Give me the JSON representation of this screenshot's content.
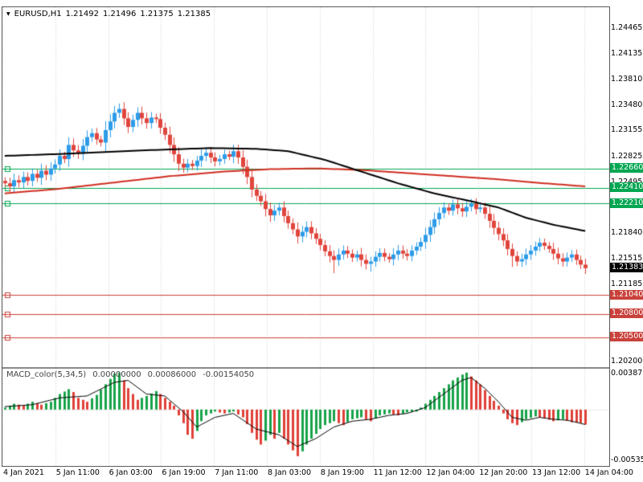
{
  "header": {
    "symbol": "EURUSD,H1",
    "open": "1.21492",
    "high": "1.21496",
    "low": "1.21375",
    "close": "1.21385"
  },
  "macd_header": {
    "label": "MACD_color(5,34,5)",
    "values": [
      "0.00000000",
      "0.00086000",
      "-0.00154050"
    ]
  },
  "price_axis": {
    "ticks": [
      {
        "v": 1.24465,
        "t": "1.24465"
      },
      {
        "v": 1.24135,
        "t": "1.24135"
      },
      {
        "v": 1.2381,
        "t": "1.23810"
      },
      {
        "v": 1.2348,
        "t": "1.23480"
      },
      {
        "v": 1.23155,
        "t": "1.23155"
      },
      {
        "v": 1.22825,
        "t": "1.22825"
      },
      {
        "v": 1.22495,
        "t": "1.22495"
      },
      {
        "v": 1.2184,
        "t": "1.21840"
      },
      {
        "v": 1.21515,
        "t": "1.21515"
      },
      {
        "v": 1.21185,
        "t": "1.21185"
      },
      {
        "v": 1.202,
        "t": "1.20200"
      }
    ],
    "green_levels": [
      {
        "v": 1.2266,
        "t": "1.22660"
      },
      {
        "v": 1.2241,
        "t": "1.22410"
      },
      {
        "v": 1.2221,
        "t": "1.22210"
      }
    ],
    "red_levels": [
      {
        "v": 1.2104,
        "t": "1.21040"
      },
      {
        "v": 1.208,
        "t": "1.20800"
      },
      {
        "v": 1.205,
        "t": "1.20500"
      }
    ],
    "current": {
      "v": 1.21383,
      "t": "1.21383"
    }
  },
  "macd_axis": {
    "top": {
      "v": 0.0038777,
      "t": "0.0038777"
    },
    "bottom": {
      "v": -0.005353,
      "t": "-0.0053530"
    }
  },
  "time_axis": [
    "4 Jan 2021",
    "5 Jan 11:00",
    "6 Jan 03:00",
    "6 Jan 19:00",
    "7 Jan 11:00",
    "8 Jan 03:00",
    "8 Jan 19:00",
    "11 Jan 12:00",
    "12 Jan 04:00",
    "12 Jan 20:00",
    "13 Jan 12:00",
    "14 Jan 04:00"
  ],
  "colors": {
    "candle_up": "#2d9ce8",
    "candle_down": "#e0453c",
    "level_green": "#00a651",
    "level_red": "#c9423b",
    "current_box": "#000000",
    "ma_black": "#000000",
    "ma_red": "#cf2e21",
    "macd_up": "#18a34a",
    "macd_down": "#df4038",
    "signal": "#000000",
    "grid": "#cdcdcd"
  },
  "chart_data": {
    "type": "candlestick",
    "symbol": "EURUSD",
    "timeframe": "H1",
    "title": "EURUSD,H1",
    "x_range": [
      "4 Jan 2021 00:00",
      "14 Jan 2021 04:00"
    ],
    "price_range": {
      "top": 1.2472,
      "bottom": 1.2012
    },
    "first_open": 1.225,
    "closes": [
      1.2247,
      1.2243,
      1.2251,
      1.2248,
      1.2255,
      1.225,
      1.2259,
      1.2254,
      1.2263,
      1.2258,
      1.2266,
      1.2271,
      1.2282,
      1.2278,
      1.2296,
      1.2289,
      1.2285,
      1.2295,
      1.2306,
      1.2311,
      1.2303,
      1.2299,
      1.2315,
      1.2326,
      1.2337,
      1.2342,
      1.233,
      1.2319,
      1.2328,
      1.2337,
      1.233,
      1.2324,
      1.2331,
      1.2329,
      1.2318,
      1.2309,
      1.2296,
      1.2284,
      1.2272,
      1.2267,
      1.2272,
      1.2269,
      1.2276,
      1.2282,
      1.2286,
      1.228,
      1.2275,
      1.2278,
      1.2284,
      1.2281,
      1.2288,
      1.228,
      1.2268,
      1.2255,
      1.2239,
      1.2231,
      1.2224,
      1.2214,
      1.2206,
      1.2212,
      1.2216,
      1.2205,
      1.2196,
      1.2188,
      1.2179,
      1.2185,
      1.2191,
      1.2183,
      1.2176,
      1.2168,
      1.216,
      1.2154,
      1.2149,
      1.2156,
      1.2161,
      1.2157,
      1.2152,
      1.2156,
      1.2149,
      1.2144,
      1.2147,
      1.2153,
      1.2158,
      1.2153,
      1.215,
      1.2156,
      1.2161,
      1.2157,
      1.2154,
      1.2161,
      1.2166,
      1.2172,
      1.2181,
      1.2191,
      1.2201,
      1.2209,
      1.2216,
      1.2212,
      1.222,
      1.2215,
      1.2211,
      1.2217,
      1.2221,
      1.2214,
      1.2216,
      1.2208,
      1.2199,
      1.219,
      1.2182,
      1.2174,
      1.2163,
      1.2154,
      1.2147,
      1.215,
      1.2156,
      1.2161,
      1.2166,
      1.2171,
      1.2167,
      1.2163,
      1.2157,
      1.2151,
      1.2147,
      1.2152,
      1.2156,
      1.2149,
      1.2143,
      1.21385
    ],
    "wick_overrides": {
      "hi": {
        "25": 1.2349,
        "29": 1.2344
      },
      "lo": {
        "72": 1.2132,
        "80": 1.2134,
        "111": 1.214
      }
    },
    "sma_black_points": [
      [
        0,
        1.2282
      ],
      [
        15,
        1.2285
      ],
      [
        30,
        1.2289
      ],
      [
        45,
        1.2292
      ],
      [
        55,
        1.2291
      ],
      [
        62,
        1.2288
      ],
      [
        70,
        1.2277
      ],
      [
        78,
        1.2262
      ],
      [
        86,
        1.2247
      ],
      [
        94,
        1.2234
      ],
      [
        102,
        1.2224
      ],
      [
        108,
        1.2216
      ],
      [
        114,
        1.2203
      ],
      [
        120,
        1.2194
      ],
      [
        127,
        1.2186
      ]
    ],
    "sma_red_points": [
      [
        0,
        1.2234
      ],
      [
        12,
        1.224
      ],
      [
        24,
        1.2248
      ],
      [
        36,
        1.2256
      ],
      [
        48,
        1.2262
      ],
      [
        58,
        1.2265
      ],
      [
        68,
        1.2266
      ],
      [
        78,
        1.2264
      ],
      [
        88,
        1.226
      ],
      [
        98,
        1.2256
      ],
      [
        108,
        1.2252
      ],
      [
        118,
        1.2247
      ],
      [
        127,
        1.2243
      ]
    ],
    "levels": {
      "green": [
        1.2266,
        1.2241,
        1.2221
      ],
      "red": [
        1.2104,
        1.208,
        1.205
      ],
      "current": 1.21383
    },
    "macd": {
      "range": {
        "top": 0.0042,
        "bottom": -0.0058
      },
      "hist_points": [
        [
          0,
          0.0002
        ],
        [
          2,
          0.0006
        ],
        [
          4,
          0.0004
        ],
        [
          6,
          0.0008
        ],
        [
          8,
          0.0005
        ],
        [
          10,
          0.0008
        ],
        [
          12,
          0.0016
        ],
        [
          14,
          0.0021
        ],
        [
          15,
          0.0018
        ],
        [
          16,
          0.0012
        ],
        [
          18,
          0.0008
        ],
        [
          20,
          0.0015
        ],
        [
          22,
          0.0026
        ],
        [
          24,
          0.0037
        ],
        [
          25,
          0.0038
        ],
        [
          26,
          0.003
        ],
        [
          27,
          0.0022
        ],
        [
          29,
          0.001
        ],
        [
          31,
          0.0014
        ],
        [
          33,
          0.0019
        ],
        [
          34,
          0.0016
        ],
        [
          35,
          0.0012
        ],
        [
          36,
          0.0008
        ],
        [
          37,
          0.0004
        ],
        [
          38,
          -0.0006
        ],
        [
          39,
          -0.0014
        ],
        [
          40,
          -0.0026
        ],
        [
          41,
          -0.003
        ],
        [
          42,
          -0.0022
        ],
        [
          43,
          -0.0012
        ],
        [
          44,
          -0.0006
        ],
        [
          46,
          -0.0002
        ],
        [
          48,
          -0.0004
        ],
        [
          50,
          -0.0002
        ],
        [
          52,
          -0.0008
        ],
        [
          53,
          -0.0015
        ],
        [
          54,
          -0.0024
        ],
        [
          55,
          -0.0031
        ],
        [
          56,
          -0.0036
        ],
        [
          57,
          -0.0032
        ],
        [
          58,
          -0.0026
        ],
        [
          59,
          -0.003
        ],
        [
          60,
          -0.0024
        ],
        [
          61,
          -0.003
        ],
        [
          62,
          -0.0036
        ],
        [
          63,
          -0.0042
        ],
        [
          64,
          -0.0048
        ],
        [
          65,
          -0.0043
        ],
        [
          66,
          -0.0036
        ],
        [
          67,
          -0.003
        ],
        [
          68,
          -0.0025
        ],
        [
          69,
          -0.002
        ],
        [
          70,
          -0.0016
        ],
        [
          72,
          -0.0012
        ],
        [
          74,
          -0.0016
        ],
        [
          76,
          -0.001
        ],
        [
          78,
          -0.0008
        ],
        [
          80,
          -0.0012
        ],
        [
          82,
          -0.0006
        ],
        [
          84,
          -0.0004
        ],
        [
          86,
          -0.0006
        ],
        [
          88,
          -0.0003
        ],
        [
          90,
          -0.0002
        ],
        [
          92,
          0.0006
        ],
        [
          94,
          0.0014
        ],
        [
          96,
          0.0022
        ],
        [
          98,
          0.003
        ],
        [
          100,
          0.0036
        ],
        [
          101,
          0.0038
        ],
        [
          102,
          0.0034
        ],
        [
          104,
          0.0026
        ],
        [
          106,
          0.0014
        ],
        [
          108,
          0.0004
        ],
        [
          109,
          -0.0004
        ],
        [
          110,
          -0.001
        ],
        [
          111,
          -0.0014
        ],
        [
          112,
          -0.0016
        ],
        [
          114,
          -0.001
        ],
        [
          116,
          -0.0007
        ],
        [
          118,
          -0.0009
        ],
        [
          120,
          -0.0012
        ],
        [
          122,
          -0.001
        ],
        [
          124,
          -0.0013
        ],
        [
          126,
          -0.0014
        ],
        [
          127,
          -0.00154
        ]
      ],
      "signal_points": [
        [
          0,
          0.0003
        ],
        [
          6,
          0.0005
        ],
        [
          12,
          0.0012
        ],
        [
          18,
          0.0014
        ],
        [
          24,
          0.0028
        ],
        [
          27,
          0.003
        ],
        [
          31,
          0.0016
        ],
        [
          35,
          0.0014
        ],
        [
          39,
          -0.0002
        ],
        [
          42,
          -0.0018
        ],
        [
          46,
          -0.0008
        ],
        [
          50,
          -0.0004
        ],
        [
          55,
          -0.002
        ],
        [
          60,
          -0.0026
        ],
        [
          64,
          -0.0038
        ],
        [
          68,
          -0.003
        ],
        [
          72,
          -0.0018
        ],
        [
          76,
          -0.0012
        ],
        [
          80,
          -0.001
        ],
        [
          84,
          -0.0006
        ],
        [
          88,
          -0.0004
        ],
        [
          92,
          0.0002
        ],
        [
          96,
          0.0016
        ],
        [
          100,
          0.003
        ],
        [
          102,
          0.0033
        ],
        [
          105,
          0.0022
        ],
        [
          108,
          0.0008
        ],
        [
          111,
          -0.0008
        ],
        [
          114,
          -0.0011
        ],
        [
          117,
          -0.0008
        ],
        [
          120,
          -0.001
        ],
        [
          123,
          -0.0011
        ],
        [
          125,
          -0.0013
        ],
        [
          127,
          -0.00154
        ]
      ]
    }
  }
}
